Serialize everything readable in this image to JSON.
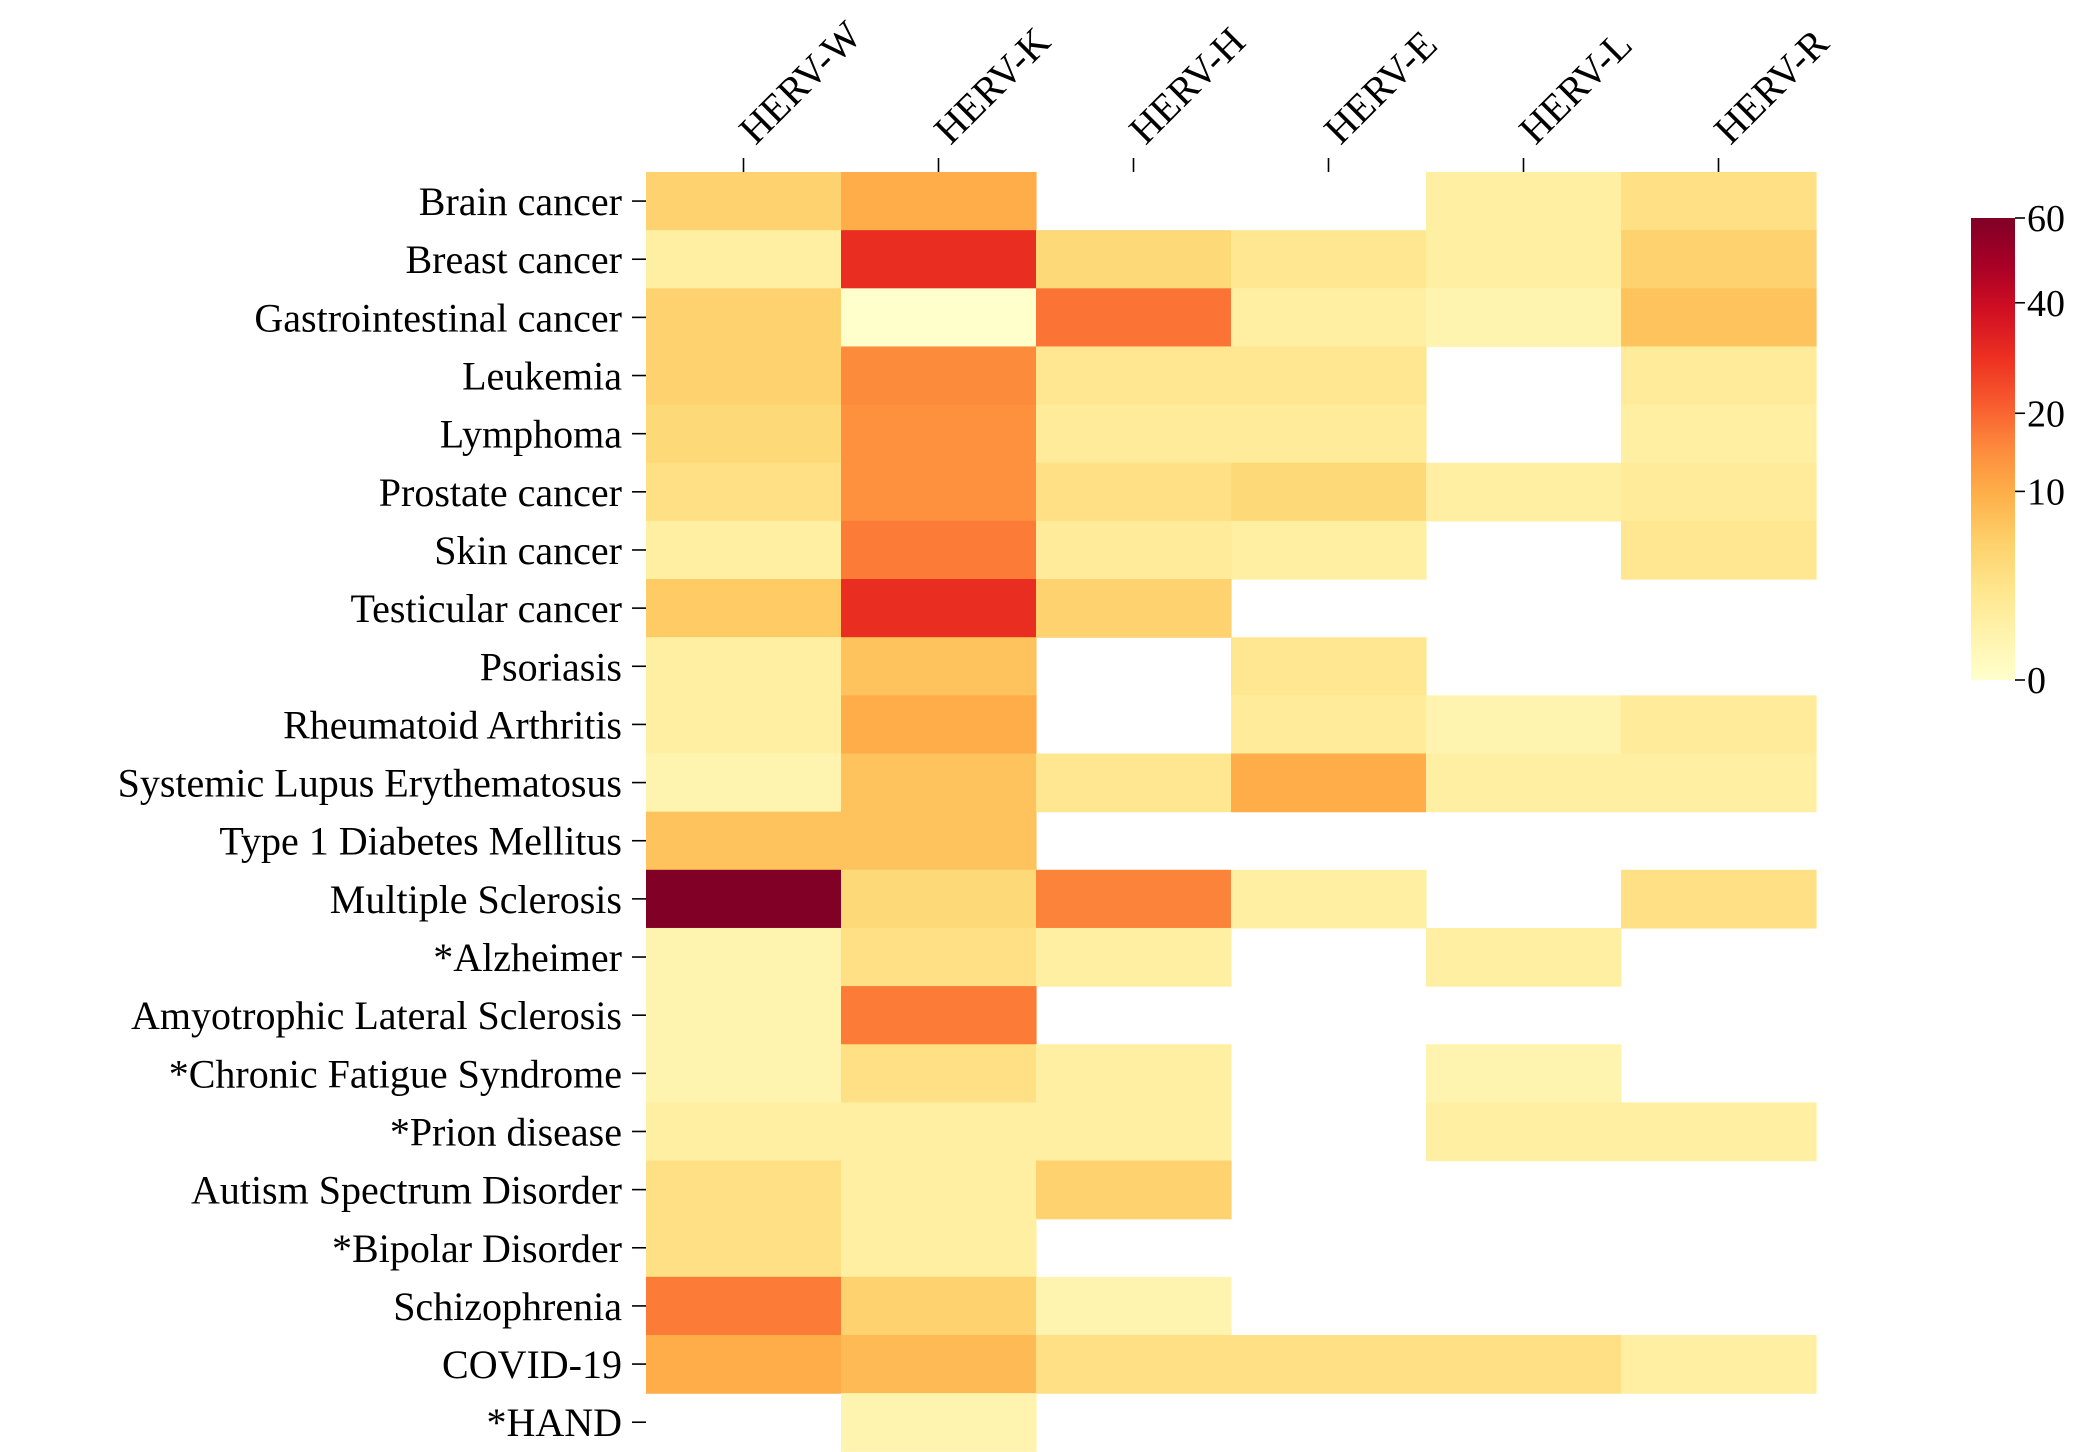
{
  "chart_data": {
    "type": "heatmap",
    "columns": [
      "HERV-W",
      "HERV-K",
      "HERV-H",
      "HERV-E",
      "HERV-L",
      "HERV-R"
    ],
    "rows": [
      "Brain cancer",
      "Breast cancer",
      "Gastrointestinal cancer",
      "Leukemia",
      "Lymphoma",
      "Prostate cancer",
      "Skin cancer",
      "Testicular cancer",
      "Psoriasis",
      "Rheumatoid Arthritis",
      "Systemic Lupus Erythematosus",
      "Type 1 Diabetes Mellitus",
      "Multiple Sclerosis",
      "*Alzheimer",
      "Amyotrophic Lateral Sclerosis",
      "*Chronic Fatigue Syndrome",
      "*Prion disease",
      "Autism Spectrum Disorder",
      "*Bipolar Disorder",
      "Schizophrenia",
      "COVID-19",
      "*HAND"
    ],
    "values": [
      [
        5,
        10,
        null,
        null,
        1,
        3
      ],
      [
        1,
        30,
        4,
        2,
        1,
        5
      ],
      [
        5,
        0,
        18,
        1,
        0.5,
        7
      ],
      [
        5,
        15,
        2,
        2,
        null,
        1.5
      ],
      [
        4,
        14,
        1.5,
        1.5,
        null,
        1
      ],
      [
        3,
        14,
        3,
        4,
        1,
        1.5
      ],
      [
        1,
        17,
        1.5,
        1,
        null,
        2
      ],
      [
        6,
        30,
        5,
        null,
        null,
        null
      ],
      [
        1,
        7,
        null,
        2,
        null,
        null
      ],
      [
        1,
        10,
        null,
        1.5,
        0.5,
        1.5
      ],
      [
        0.5,
        7,
        2,
        10,
        1,
        1
      ],
      [
        7,
        7,
        null,
        null,
        null,
        null
      ],
      [
        60,
        4,
        16,
        1,
        null,
        3
      ],
      [
        0.5,
        3,
        1,
        null,
        1,
        null
      ],
      [
        0.5,
        17,
        null,
        null,
        null,
        null
      ],
      [
        0.5,
        3,
        1,
        null,
        0.5,
        null
      ],
      [
        1,
        1,
        1,
        null,
        1,
        1
      ],
      [
        3,
        1,
        5,
        null,
        null,
        null
      ],
      [
        3,
        1,
        null,
        null,
        null,
        null
      ],
      [
        17,
        5,
        0.5,
        null,
        null,
        null
      ],
      [
        10,
        8,
        3,
        3,
        3,
        1
      ],
      [
        null,
        0.5,
        null,
        null,
        null,
        null
      ]
    ],
    "colorbar": {
      "ticks": [
        0,
        10,
        20,
        40,
        60
      ],
      "tick_labels": [
        "0",
        "10",
        "20",
        "40",
        "60"
      ],
      "range": [
        0,
        60
      ],
      "scale": "sqrt",
      "colormap": "YlOrRd",
      "colors": [
        "#ffffcc",
        "#fff3ac",
        "#ffe58c",
        "#fed06a",
        "#feb04a",
        "#fd8b3c",
        "#f85a2e",
        "#ec2f21",
        "#d00f22",
        "#a80026",
        "#800026"
      ]
    }
  }
}
